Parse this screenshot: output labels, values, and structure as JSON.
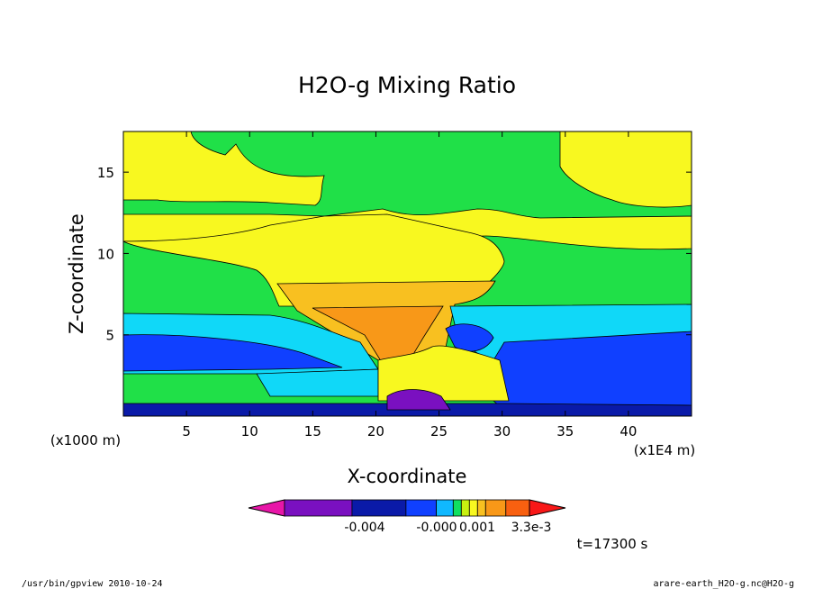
{
  "chart_data": {
    "type": "heatmap",
    "title": "H2O-g Mixing Ratio",
    "xlabel": "X-coordinate",
    "ylabel": "Z-coordinate",
    "x_unit": "(x1E4 m)",
    "y_unit": "(x1000 m)",
    "xlim": [
      0,
      45
    ],
    "ylim": [
      0,
      17.5
    ],
    "x_ticks": [
      5,
      10,
      15,
      20,
      25,
      30,
      35,
      40
    ],
    "y_ticks": [
      5,
      10,
      15
    ],
    "x_tick_labels": [
      "5",
      "10",
      "15",
      "20",
      "25",
      "30",
      "35",
      "40"
    ],
    "y_tick_labels": [
      "5",
      "10",
      "15"
    ],
    "colorbar": {
      "colors": [
        "#e816a8",
        "#7a10c0",
        "#0a1aa8",
        "#1040ff",
        "#10b8ff",
        "#10e060",
        "#c8f010",
        "#f8f820",
        "#f8c020",
        "#f89818",
        "#f86010",
        "#f81818"
      ],
      "tick_labels": [
        "-0.004",
        "-0.000",
        "0.001",
        "3.3e-3"
      ]
    },
    "zones": [
      {
        "name": "background",
        "color": "#20e048"
      },
      {
        "name": "stratosphere-left",
        "color": "#f8f820"
      },
      {
        "name": "stratosphere-right",
        "color": "#f8f820"
      },
      {
        "name": "upper-band",
        "color": "#f8f820"
      },
      {
        "name": "anvil",
        "color": "#f8f820"
      },
      {
        "name": "anvil-core",
        "color": "#f8c020"
      },
      {
        "name": "anvil-inner",
        "color": "#f89818"
      },
      {
        "name": "cyan-band",
        "color": "#10d8f8"
      },
      {
        "name": "blue-band",
        "color": "#1040ff"
      },
      {
        "name": "boundary-layer",
        "color": "#0a1aa8"
      },
      {
        "name": "surface-cyan",
        "color": "#10d8f8"
      },
      {
        "name": "convective-core",
        "color": "#f8f820"
      },
      {
        "name": "purple-pocket",
        "color": "#7a10c0"
      }
    ]
  },
  "annotations": {
    "time_label": "t=17300 s",
    "footer_left": "/usr/bin/gpview  2010-10-24",
    "footer_right": "arare-earth_H2O-g.nc@H2O-g"
  }
}
